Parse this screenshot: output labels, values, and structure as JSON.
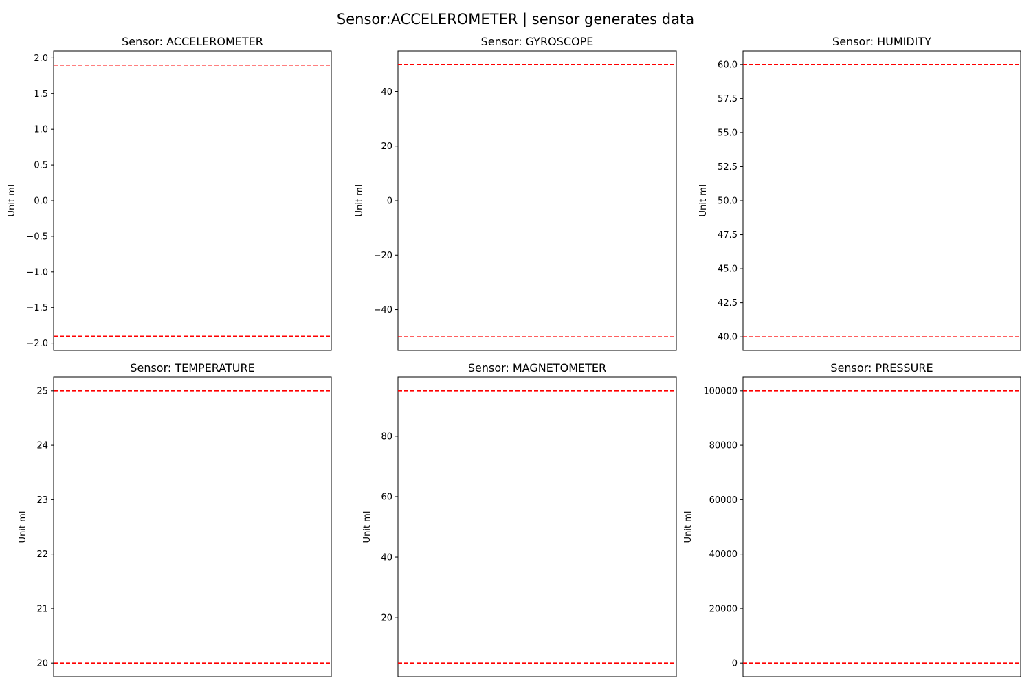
{
  "figure": {
    "title": "Sensor:ACCELEROMETER | sensor generates data",
    "threshold_color": "#ff0000",
    "frame_color": "#000000"
  },
  "chart_data": [
    {
      "type": "line",
      "title": "Sensor: ACCELEROMETER",
      "xlabel": "",
      "ylabel": "Unit ml",
      "x_ticks_visible": false,
      "ylim": [
        -2.1,
        2.1
      ],
      "yticks": [
        -2.0,
        -1.5,
        -1.0,
        -0.5,
        0.0,
        0.5,
        1.0,
        1.5,
        2.0
      ],
      "ytick_labels": [
        "−2.0",
        "−1.5",
        "−1.0",
        "−0.5",
        "0.0",
        "0.5",
        "1.0",
        "1.5",
        "2.0"
      ],
      "thresholds": [
        -1.9,
        1.9
      ],
      "series": [],
      "grid": false
    },
    {
      "type": "line",
      "title": "Sensor: GYROSCOPE",
      "xlabel": "",
      "ylabel": "Unit ml",
      "x_ticks_visible": false,
      "ylim": [
        -55,
        55
      ],
      "yticks": [
        -40,
        -20,
        0,
        20,
        40
      ],
      "ytick_labels": [
        "−40",
        "−20",
        "0",
        "20",
        "40"
      ],
      "thresholds": [
        -50,
        50
      ],
      "series": [],
      "grid": false
    },
    {
      "type": "line",
      "title": "Sensor: HUMIDITY",
      "xlabel": "",
      "ylabel": "Unit ml",
      "x_ticks_visible": false,
      "ylim": [
        39,
        61
      ],
      "yticks": [
        40.0,
        42.5,
        45.0,
        47.5,
        50.0,
        52.5,
        55.0,
        57.5,
        60.0
      ],
      "ytick_labels": [
        "40.0",
        "42.5",
        "45.0",
        "47.5",
        "50.0",
        "52.5",
        "55.0",
        "57.5",
        "60.0"
      ],
      "thresholds": [
        40,
        60
      ],
      "series": [],
      "grid": false
    },
    {
      "type": "line",
      "title": "Sensor: TEMPERATURE",
      "xlabel": "",
      "ylabel": "Unit ml",
      "x_ticks_visible": false,
      "ylim": [
        19.75,
        25.25
      ],
      "yticks": [
        20,
        21,
        22,
        23,
        24,
        25
      ],
      "ytick_labels": [
        "20",
        "21",
        "22",
        "23",
        "24",
        "25"
      ],
      "thresholds": [
        20,
        25
      ],
      "series": [],
      "grid": false
    },
    {
      "type": "line",
      "title": "Sensor: MAGNETOMETER",
      "xlabel": "",
      "ylabel": "Unit ml",
      "x_ticks_visible": false,
      "ylim": [
        0.5,
        99.5
      ],
      "yticks": [
        20,
        40,
        60,
        80
      ],
      "ytick_labels": [
        "20",
        "40",
        "60",
        "80"
      ],
      "thresholds": [
        5,
        95
      ],
      "series": [],
      "grid": false
    },
    {
      "type": "line",
      "title": "Sensor: PRESSURE",
      "xlabel": "",
      "ylabel": "Unit ml",
      "x_ticks_visible": false,
      "ylim": [
        -5000,
        105000
      ],
      "yticks": [
        0,
        20000,
        40000,
        60000,
        80000,
        100000
      ],
      "ytick_labels": [
        "0",
        "20000",
        "40000",
        "60000",
        "80000",
        "100000"
      ],
      "thresholds": [
        0,
        100000
      ],
      "series": [],
      "grid": false
    }
  ]
}
